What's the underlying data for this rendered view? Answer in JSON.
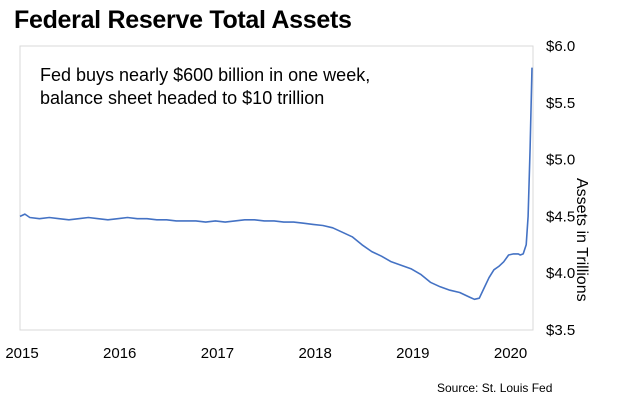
{
  "chart_data": {
    "type": "line",
    "title": "Federal Reserve Total Assets",
    "annotation_lines": [
      "Fed buys nearly $600 billion in one week,",
      "balance sheet headed to $10 trillion"
    ],
    "ylabel": "Assets in Trillions",
    "source": "Source: St. Louis Fed",
    "xlim": [
      2015.0,
      2020.25
    ],
    "ylim": [
      3.5,
      6.0
    ],
    "x_ticks": [
      2015,
      2016,
      2017,
      2018,
      2019,
      2020
    ],
    "x_tick_labels": [
      "2015",
      "2016",
      "2017",
      "2018",
      "2019",
      "2020"
    ],
    "y_ticks": [
      3.5,
      4.0,
      4.5,
      5.0,
      5.5,
      6.0
    ],
    "y_tick_labels": [
      "$3.5",
      "$4.0",
      "$4.5",
      "$5.0",
      "$5.5",
      "$6.0"
    ],
    "line_color": "#4472c4",
    "series": [
      {
        "name": "Total Assets",
        "x": [
          2015.0,
          2015.05,
          2015.1,
          2015.2,
          2015.3,
          2015.4,
          2015.5,
          2015.6,
          2015.7,
          2015.8,
          2015.9,
          2016.0,
          2016.1,
          2016.2,
          2016.3,
          2016.4,
          2016.5,
          2016.6,
          2016.7,
          2016.8,
          2016.9,
          2017.0,
          2017.1,
          2017.2,
          2017.3,
          2017.4,
          2017.5,
          2017.6,
          2017.7,
          2017.8,
          2017.9,
          2018.0,
          2018.1,
          2018.2,
          2018.3,
          2018.4,
          2018.5,
          2018.6,
          2018.7,
          2018.8,
          2018.9,
          2019.0,
          2019.1,
          2019.2,
          2019.3,
          2019.4,
          2019.5,
          2019.6,
          2019.65,
          2019.7,
          2019.75,
          2019.8,
          2019.85,
          2019.9,
          2019.95,
          2020.0,
          2020.05,
          2020.1,
          2020.12,
          2020.15,
          2020.18,
          2020.2,
          2020.22,
          2020.24
        ],
        "y": [
          4.5,
          4.52,
          4.49,
          4.48,
          4.49,
          4.48,
          4.47,
          4.48,
          4.49,
          4.48,
          4.47,
          4.48,
          4.49,
          4.48,
          4.48,
          4.47,
          4.47,
          4.46,
          4.46,
          4.46,
          4.45,
          4.46,
          4.45,
          4.46,
          4.47,
          4.47,
          4.46,
          4.46,
          4.45,
          4.45,
          4.44,
          4.43,
          4.42,
          4.4,
          4.36,
          4.32,
          4.25,
          4.19,
          4.15,
          4.1,
          4.07,
          4.04,
          3.99,
          3.92,
          3.88,
          3.85,
          3.83,
          3.79,
          3.77,
          3.78,
          3.87,
          3.96,
          4.03,
          4.06,
          4.1,
          4.16,
          4.17,
          4.17,
          4.16,
          4.17,
          4.25,
          4.5,
          5.1,
          5.81
        ]
      }
    ]
  }
}
